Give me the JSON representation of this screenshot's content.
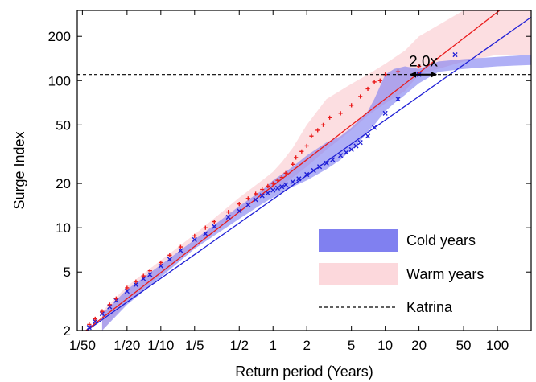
{
  "chart_data": {
    "type": "scatter",
    "xlabel": "Return period (Years)",
    "ylabel": "Surge Index",
    "xscale": "log",
    "yscale": "log",
    "xlim": [
      0.018,
      200
    ],
    "ylim": [
      2,
      300
    ],
    "xticks": [
      {
        "value": 0.02,
        "label": "1/50"
      },
      {
        "value": 0.05,
        "label": "1/20"
      },
      {
        "value": 0.1,
        "label": "1/10"
      },
      {
        "value": 0.2,
        "label": "1/5"
      },
      {
        "value": 0.5,
        "label": "1/2"
      },
      {
        "value": 1,
        "label": "1"
      },
      {
        "value": 2,
        "label": "2"
      },
      {
        "value": 5,
        "label": "5"
      },
      {
        "value": 10,
        "label": "10"
      },
      {
        "value": 20,
        "label": "20"
      },
      {
        "value": 50,
        "label": "50"
      },
      {
        "value": 100,
        "label": "100"
      }
    ],
    "yticks": [
      {
        "value": 2,
        "label": "2"
      },
      {
        "value": 5,
        "label": "5"
      },
      {
        "value": 10,
        "label": "10"
      },
      {
        "value": 20,
        "label": "20"
      },
      {
        "value": 50,
        "label": "50"
      },
      {
        "value": 100,
        "label": "100"
      },
      {
        "value": 200,
        "label": "200"
      }
    ],
    "legend_position": "bottom-right",
    "legend": [
      {
        "name": "Cold years",
        "swatch": "band",
        "color": "#8080f0"
      },
      {
        "name": "Warm years",
        "swatch": "band",
        "color": "#fcd8dc"
      },
      {
        "name": "Katrina",
        "swatch": "dashed-line",
        "color": "#000000"
      }
    ],
    "katrina_level": 110,
    "annotation": {
      "text": "2.0x",
      "x_from": 16,
      "x_to": 30,
      "y": 110
    },
    "series": [
      {
        "name": "Cold years",
        "color": "#1f1fd6",
        "marker": "x",
        "fit_line": {
          "x": [
            0.018,
            200
          ],
          "y": [
            1.8,
            270
          ]
        },
        "band_color": "#8080f0",
        "band_opacity": 0.62,
        "band_x": [
          0.03,
          0.05,
          0.1,
          0.2,
          0.5,
          0.8,
          1,
          1.5,
          2,
          3,
          4,
          5,
          6,
          7,
          8,
          10,
          12,
          15,
          20,
          30,
          50,
          100,
          200
        ],
        "band_upper": [
          2.6,
          3.8,
          5.6,
          8.3,
          14,
          18,
          21,
          26,
          31,
          38,
          42,
          48,
          55,
          62,
          75,
          110,
          120,
          125,
          120,
          135,
          140,
          145,
          150
        ],
        "band_lower": [
          2.0,
          3.0,
          4.6,
          7.2,
          11.5,
          14.5,
          16,
          19,
          21,
          25,
          29,
          34,
          39,
          45,
          50,
          62,
          70,
          80,
          96,
          115,
          120,
          125,
          128
        ],
        "points_x": [
          0.023,
          0.026,
          0.03,
          0.035,
          0.04,
          0.05,
          0.06,
          0.07,
          0.08,
          0.1,
          0.12,
          0.15,
          0.2,
          0.25,
          0.3,
          0.4,
          0.5,
          0.6,
          0.7,
          0.8,
          0.9,
          1,
          1.1,
          1.2,
          1.3,
          1.5,
          1.7,
          2,
          2.3,
          2.6,
          3,
          3.4,
          4,
          4.5,
          5,
          5.5,
          6,
          7,
          8,
          10,
          13,
          20,
          42
        ],
        "points_y": [
          2.1,
          2.3,
          2.6,
          2.9,
          3.2,
          3.7,
          4.1,
          4.5,
          4.8,
          5.5,
          6.1,
          7.0,
          8.3,
          9.1,
          10.2,
          11.8,
          13,
          14.3,
          15.5,
          16.5,
          17.2,
          18,
          18.6,
          19,
          19.6,
          20.5,
          21.5,
          23,
          24.5,
          26,
          27.5,
          29,
          31,
          32.5,
          34,
          36,
          38,
          42,
          48,
          60,
          75,
          110,
          150
        ]
      },
      {
        "name": "Warm years",
        "color": "#ea1c1c",
        "marker": "+",
        "fit_line": {
          "x": [
            0.018,
            200
          ],
          "y": [
            1.8,
            440
          ]
        },
        "band_color": "#fcd8dc",
        "band_opacity": 0.85,
        "band_x": [
          0.03,
          0.05,
          0.1,
          0.2,
          0.5,
          0.8,
          1,
          1.2,
          1.5,
          2,
          3,
          5,
          7,
          10,
          15,
          20,
          50,
          100,
          200
        ],
        "band_upper": [
          2.7,
          4.0,
          6.0,
          9.0,
          16,
          21,
          24,
          28,
          35,
          50,
          75,
          95,
          110,
          130,
          160,
          200,
          300,
          330,
          330
        ],
        "band_lower": [
          2.0,
          3.1,
          4.8,
          7.5,
          13,
          16.5,
          18,
          19.5,
          22,
          26,
          34,
          46,
          58,
          70,
          85,
          110,
          135,
          150,
          150
        ],
        "points_x": [
          0.023,
          0.026,
          0.03,
          0.035,
          0.04,
          0.05,
          0.06,
          0.07,
          0.08,
          0.1,
          0.12,
          0.15,
          0.2,
          0.25,
          0.3,
          0.4,
          0.5,
          0.6,
          0.7,
          0.8,
          0.9,
          1,
          1.1,
          1.2,
          1.3,
          1.5,
          1.6,
          1.8,
          2,
          2.2,
          2.5,
          2.8,
          3.2,
          4,
          5,
          6,
          7,
          8,
          9,
          10,
          13,
          20
        ],
        "points_y": [
          2.2,
          2.4,
          2.7,
          3.0,
          3.3,
          3.9,
          4.3,
          4.7,
          5.1,
          5.8,
          6.5,
          7.4,
          8.8,
          10,
          11,
          12.8,
          14.5,
          15.8,
          17,
          18.2,
          19.2,
          20,
          21,
          22,
          23.5,
          27,
          30,
          33,
          36,
          42,
          46,
          50,
          56,
          60,
          68,
          78,
          88,
          98,
          100,
          110,
          115,
          125
        ]
      }
    ]
  }
}
